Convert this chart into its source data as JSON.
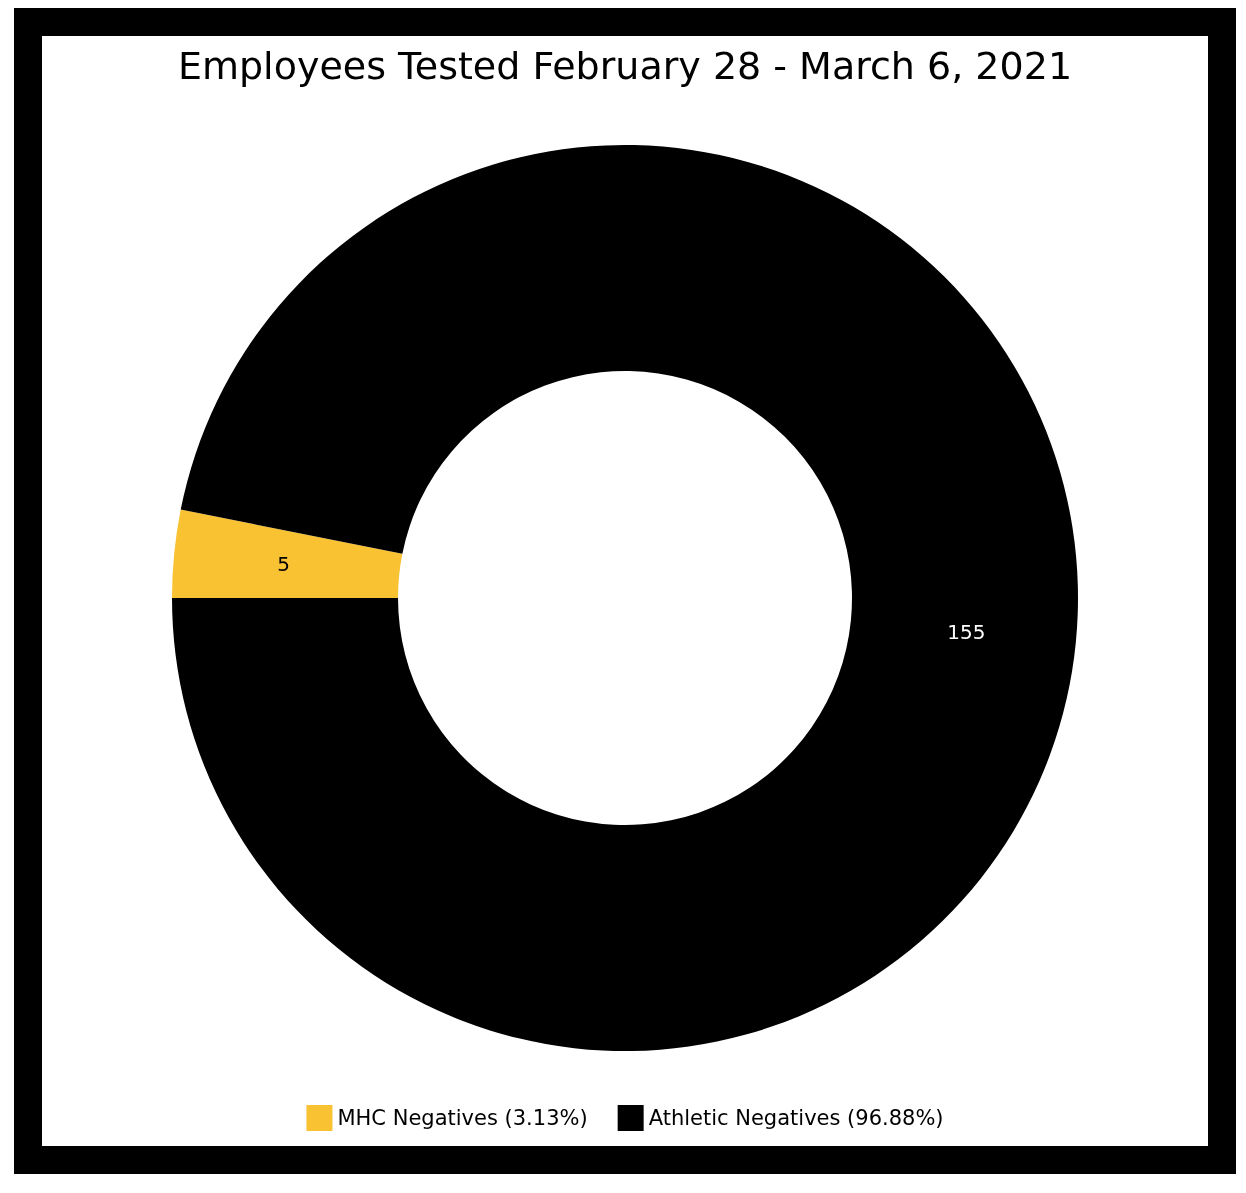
{
  "chart_data": {
    "type": "donut",
    "title": "Employees Tested February 28 - March 6, 2021",
    "categories": [
      "MHC Negatives (3.13%)",
      "Athletic Negatives (96.88%)"
    ],
    "values": [
      5,
      155
    ],
    "colors": [
      "#f9c232",
      "#000000"
    ],
    "data_labels": true,
    "legend": "bottom"
  }
}
